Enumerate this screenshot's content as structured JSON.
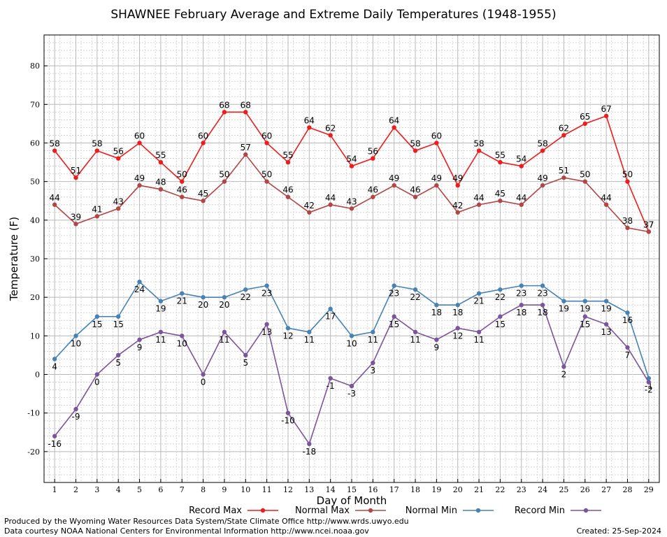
{
  "chart_data": {
    "type": "line",
    "title": "SHAWNEE February Average and Extreme Daily Temperatures (1948-1955)",
    "xlabel": "Day of Month",
    "ylabel": "Temperature (F)",
    "xlim": [
      0.5,
      29.5
    ],
    "ylim": [
      -28,
      88
    ],
    "yticks": [
      -20,
      -10,
      0,
      10,
      20,
      30,
      40,
      50,
      60,
      70,
      80
    ],
    "x": [
      1,
      2,
      3,
      4,
      5,
      6,
      7,
      8,
      9,
      10,
      11,
      12,
      13,
      14,
      15,
      16,
      17,
      18,
      19,
      20,
      21,
      22,
      23,
      24,
      25,
      26,
      27,
      28,
      29
    ],
    "grid": true,
    "legend_position": "bottom",
    "series": [
      {
        "name": "Record Max",
        "color": "#ee1c1c",
        "label_pos": "above",
        "values": [
          58,
          51,
          58,
          56,
          60,
          55,
          50,
          60,
          68,
          68,
          60,
          55,
          64,
          62,
          54,
          56,
          64,
          58,
          60,
          49,
          58,
          55,
          54,
          58,
          62,
          65,
          67,
          50,
          37
        ]
      },
      {
        "name": "Normal Max",
        "color": "#b24646",
        "label_pos": "above",
        "values": [
          44,
          39,
          41,
          43,
          49,
          48,
          46,
          45,
          50,
          57,
          50,
          46,
          42,
          44,
          43,
          46,
          49,
          46,
          49,
          42,
          44,
          45,
          44,
          49,
          51,
          50,
          44,
          38,
          37
        ]
      },
      {
        "name": "Normal Min",
        "color": "#4682b4",
        "label_pos": "below",
        "values": [
          4,
          10,
          15,
          15,
          24,
          19,
          21,
          20,
          20,
          22,
          23,
          12,
          11,
          17,
          10,
          11,
          23,
          22,
          18,
          18,
          21,
          22,
          23,
          23,
          19,
          19,
          19,
          16,
          -1
        ]
      },
      {
        "name": "Record Min",
        "color": "#7a559c",
        "label_pos": "below",
        "values": [
          -16,
          -9,
          0,
          5,
          9,
          11,
          10,
          0,
          11,
          5,
          13,
          -10,
          -18,
          -1,
          -3,
          3,
          15,
          11,
          9,
          12,
          11,
          15,
          18,
          18,
          2,
          15,
          13,
          7,
          -2
        ]
      }
    ]
  },
  "footer": {
    "line1": "Produced by the Wyoming Water Resources Data System/State Climate Office http://www.wrds.uwyo.edu",
    "line2": "Data courtesy NOAA National Centers for Environmental Information http://www.ncei.noaa.gov",
    "created": "Created:  25-Sep-2024"
  }
}
